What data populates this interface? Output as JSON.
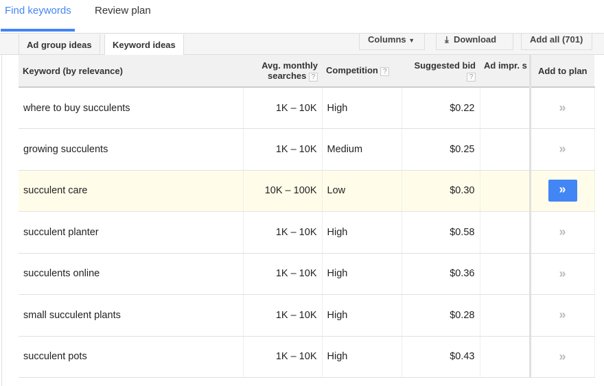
{
  "tabs": [
    "Find keywords",
    "Review plan"
  ],
  "subtabs": [
    "Ad group ideas",
    "Keyword ideas"
  ],
  "toolbar": {
    "columns": "Columns",
    "download": "Download",
    "add_all": "Add all (701)"
  },
  "headers": {
    "keyword": "Keyword (by relevance)",
    "searches_1": "Avg. monthly",
    "searches_2": "searches",
    "competition": "Competition",
    "bid": "Suggested bid",
    "impr": "Ad impr. s",
    "add": "Add to plan",
    "help": "?"
  },
  "rows": [
    {
      "keyword": "where to buy succulents",
      "searches": "1K – 10K",
      "competition": "High",
      "bid": "$0.22"
    },
    {
      "keyword": "growing succulents",
      "searches": "1K – 10K",
      "competition": "Medium",
      "bid": "$0.25"
    },
    {
      "keyword": "succulent care",
      "searches": "10K – 100K",
      "competition": "Low",
      "bid": "$0.30"
    },
    {
      "keyword": "succulent planter",
      "searches": "1K – 10K",
      "competition": "High",
      "bid": "$0.58"
    },
    {
      "keyword": "succulents online",
      "searches": "1K – 10K",
      "competition": "High",
      "bid": "$0.36"
    },
    {
      "keyword": "small succulent plants",
      "searches": "1K – 10K",
      "competition": "High",
      "bid": "$0.28"
    },
    {
      "keyword": "succulent pots",
      "searches": "1K – 10K",
      "competition": "High",
      "bid": "$0.43"
    }
  ],
  "add_glyph": "»",
  "highlighted_row": 2,
  "accent": "#4285f4"
}
